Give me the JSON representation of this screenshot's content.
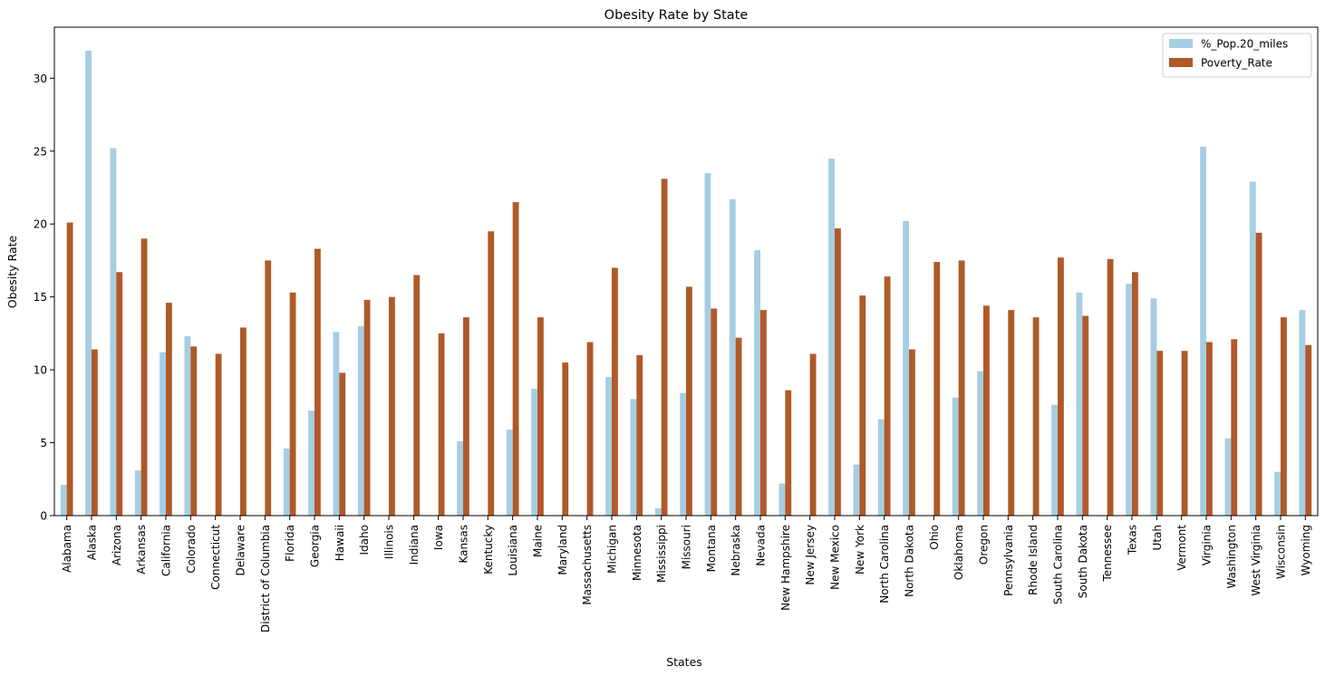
{
  "chart_data": {
    "type": "bar",
    "title": "Obesity Rate by State",
    "xlabel": "States",
    "ylabel": "Obesity Rate",
    "ylim": [
      0,
      33.5
    ],
    "yticks": [
      0,
      5,
      10,
      15,
      20,
      25,
      30
    ],
    "grid": false,
    "legend_position": "top-right",
    "categories": [
      "Alabama",
      "Alaska",
      "Arizona",
      "Arkansas",
      "California",
      "Colorado",
      "Connecticut",
      "Delaware",
      "District of Columbia",
      "Florida",
      "Georgia",
      "Hawaii",
      "Idaho",
      "Illinois",
      "Indiana",
      "Iowa",
      "Kansas",
      "Kentucky",
      "Louisiana",
      "Maine",
      "Maryland",
      "Massachusetts",
      "Michigan",
      "Minnesota",
      "Mississippi",
      "Missouri",
      "Montana",
      "Nebraska",
      "Nevada",
      "New Hampshire",
      "New Jersey",
      "New Mexico",
      "New York",
      "North Carolina",
      "North Dakota",
      "Ohio",
      "Oklahoma",
      "Oregon",
      "Pennsylvania",
      "Rhode Island",
      "South Carolina",
      "South Dakota",
      "Tennessee",
      "Texas",
      "Utah",
      "Vermont",
      "Virginia",
      "Washington",
      "West Virginia",
      "Wisconsin",
      "Wyoming"
    ],
    "series": [
      {
        "name": "%_Pop.20_miles",
        "color": "#a6cee3",
        "values": [
          2.1,
          31.9,
          25.2,
          3.1,
          11.2,
          12.3,
          0,
          0,
          0,
          4.6,
          7.2,
          12.6,
          13.0,
          0,
          0,
          0,
          5.1,
          0,
          5.9,
          8.7,
          0,
          0,
          9.5,
          8.0,
          0.5,
          8.4,
          23.5,
          21.7,
          18.2,
          2.2,
          0,
          24.5,
          3.5,
          6.6,
          20.2,
          0,
          8.1,
          9.9,
          0,
          0,
          7.6,
          15.3,
          0,
          15.9,
          14.9,
          0,
          25.3,
          5.3,
          22.9,
          3.0,
          14.1
        ]
      },
      {
        "name": "Poverty_Rate",
        "color": "#b15928",
        "values": [
          20.1,
          11.4,
          16.7,
          19.0,
          14.6,
          11.6,
          11.1,
          12.9,
          17.5,
          15.3,
          18.3,
          9.8,
          14.8,
          15.0,
          16.5,
          12.5,
          13.6,
          19.5,
          21.5,
          13.6,
          10.5,
          11.9,
          17.0,
          11.0,
          23.1,
          15.7,
          14.2,
          12.2,
          14.1,
          8.6,
          11.1,
          19.7,
          15.1,
          16.4,
          11.4,
          17.4,
          17.5,
          14.4,
          14.1,
          13.6,
          17.7,
          13.7,
          17.6,
          16.7,
          11.3,
          11.3,
          11.9,
          12.1,
          19.4,
          13.6,
          11.7
        ]
      }
    ]
  }
}
